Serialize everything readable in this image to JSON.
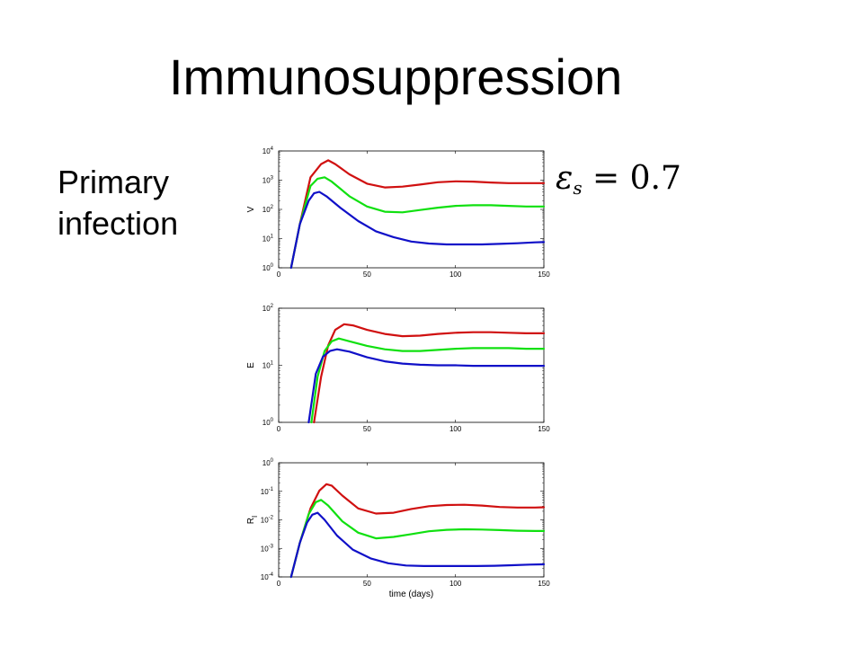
{
  "slide": {
    "title": "Immunosuppression",
    "side_label_lines": [
      "Primary",
      "infection"
    ],
    "parameter": {
      "symbol": "ε",
      "subscript": "s",
      "rest": " = 0.7"
    }
  },
  "colors": {
    "red": "#d01010",
    "green": "#10e010",
    "blue": "#1010c8",
    "axis": "#000000"
  },
  "chart_data": [
    {
      "type": "line",
      "ylabel": "V",
      "xlabel": "",
      "yscale": "log",
      "xlim": [
        0,
        150
      ],
      "ylim_exp": [
        0,
        4
      ],
      "x_ticks": [
        "0",
        "50",
        "100",
        "150"
      ],
      "y_tick_bases": [
        "10",
        "10",
        "10",
        "10",
        "10"
      ],
      "y_tick_exps": [
        "0",
        "1",
        "2",
        "3",
        "4"
      ],
      "series": [
        {
          "color": "red",
          "points": [
            [
              7,
              0
            ],
            [
              12,
              1.5
            ],
            [
              18,
              3.1
            ],
            [
              24,
              3.55
            ],
            [
              28,
              3.68
            ],
            [
              32,
              3.55
            ],
            [
              40,
              3.2
            ],
            [
              50,
              2.88
            ],
            [
              60,
              2.75
            ],
            [
              70,
              2.78
            ],
            [
              80,
              2.85
            ],
            [
              90,
              2.93
            ],
            [
              100,
              2.96
            ],
            [
              110,
              2.95
            ],
            [
              120,
              2.92
            ],
            [
              130,
              2.9
            ],
            [
              140,
              2.9
            ],
            [
              150,
              2.9
            ]
          ]
        },
        {
          "color": "green",
          "points": [
            [
              7,
              0
            ],
            [
              12,
              1.5
            ],
            [
              18,
              2.8
            ],
            [
              22,
              3.05
            ],
            [
              26,
              3.1
            ],
            [
              30,
              2.95
            ],
            [
              40,
              2.45
            ],
            [
              50,
              2.1
            ],
            [
              60,
              1.92
            ],
            [
              70,
              1.9
            ],
            [
              80,
              1.98
            ],
            [
              90,
              2.06
            ],
            [
              100,
              2.12
            ],
            [
              110,
              2.14
            ],
            [
              120,
              2.14
            ],
            [
              130,
              2.12
            ],
            [
              140,
              2.1
            ],
            [
              150,
              2.1
            ]
          ]
        },
        {
          "color": "blue",
          "points": [
            [
              7,
              0
            ],
            [
              12,
              1.5
            ],
            [
              17,
              2.3
            ],
            [
              20,
              2.55
            ],
            [
              23,
              2.6
            ],
            [
              27,
              2.45
            ],
            [
              35,
              2.05
            ],
            [
              45,
              1.6
            ],
            [
              55,
              1.25
            ],
            [
              65,
              1.05
            ],
            [
              75,
              0.9
            ],
            [
              85,
              0.83
            ],
            [
              95,
              0.8
            ],
            [
              105,
              0.8
            ],
            [
              115,
              0.8
            ],
            [
              125,
              0.82
            ],
            [
              135,
              0.84
            ],
            [
              145,
              0.87
            ],
            [
              150,
              0.88
            ]
          ]
        }
      ]
    },
    {
      "type": "line",
      "ylabel": "E",
      "xlabel": "",
      "yscale": "log",
      "xlim": [
        0,
        150
      ],
      "ylim_exp": [
        0,
        2
      ],
      "x_ticks": [
        "0",
        "50",
        "100",
        "150"
      ],
      "y_tick_bases": [
        "10",
        "10",
        "10"
      ],
      "y_tick_exps": [
        "0",
        "1",
        "2"
      ],
      "series": [
        {
          "color": "red",
          "points": [
            [
              20,
              0
            ],
            [
              24,
              0.8
            ],
            [
              28,
              1.35
            ],
            [
              32,
              1.62
            ],
            [
              37,
              1.72
            ],
            [
              42,
              1.7
            ],
            [
              50,
              1.62
            ],
            [
              60,
              1.55
            ],
            [
              70,
              1.51
            ],
            [
              80,
              1.52
            ],
            [
              90,
              1.55
            ],
            [
              100,
              1.57
            ],
            [
              110,
              1.58
            ],
            [
              120,
              1.58
            ],
            [
              130,
              1.57
            ],
            [
              140,
              1.56
            ],
            [
              150,
              1.56
            ]
          ]
        },
        {
          "color": "green",
          "points": [
            [
              18.5,
              0
            ],
            [
              22,
              0.8
            ],
            [
              26,
              1.25
            ],
            [
              30,
              1.42
            ],
            [
              34,
              1.47
            ],
            [
              40,
              1.42
            ],
            [
              50,
              1.34
            ],
            [
              60,
              1.28
            ],
            [
              70,
              1.25
            ],
            [
              80,
              1.25
            ],
            [
              90,
              1.27
            ],
            [
              100,
              1.29
            ],
            [
              110,
              1.3
            ],
            [
              120,
              1.3
            ],
            [
              130,
              1.3
            ],
            [
              140,
              1.29
            ],
            [
              150,
              1.29
            ]
          ]
        },
        {
          "color": "blue",
          "points": [
            [
              17,
              0
            ],
            [
              21,
              0.85
            ],
            [
              25,
              1.15
            ],
            [
              29,
              1.25
            ],
            [
              33,
              1.28
            ],
            [
              40,
              1.24
            ],
            [
              50,
              1.14
            ],
            [
              60,
              1.07
            ],
            [
              70,
              1.03
            ],
            [
              80,
              1.01
            ],
            [
              90,
              1.0
            ],
            [
              100,
              1.0
            ],
            [
              110,
              0.99
            ],
            [
              120,
              0.99
            ],
            [
              130,
              0.99
            ],
            [
              140,
              0.99
            ],
            [
              150,
              0.99
            ]
          ]
        }
      ]
    },
    {
      "type": "line",
      "ylabel": "R",
      "ylabel_sub": "I",
      "xlabel": "time (days)",
      "yscale": "log",
      "xlim": [
        0,
        150
      ],
      "ylim_exp": [
        -4,
        0
      ],
      "x_ticks": [
        "0",
        "50",
        "100",
        "150"
      ],
      "y_tick_bases": [
        "10",
        "10",
        "10",
        "10",
        "10"
      ],
      "y_tick_exps": [
        "-4",
        "-3",
        "-2",
        "-1",
        "0"
      ],
      "series": [
        {
          "color": "red",
          "points": [
            [
              7,
              -4
            ],
            [
              12,
              -2.8
            ],
            [
              18,
              -1.6
            ],
            [
              23,
              -0.98
            ],
            [
              27,
              -0.75
            ],
            [
              30,
              -0.8
            ],
            [
              36,
              -1.15
            ],
            [
              45,
              -1.6
            ],
            [
              55,
              -1.78
            ],
            [
              65,
              -1.75
            ],
            [
              75,
              -1.62
            ],
            [
              85,
              -1.52
            ],
            [
              95,
              -1.48
            ],
            [
              105,
              -1.47
            ],
            [
              115,
              -1.5
            ],
            [
              125,
              -1.55
            ],
            [
              135,
              -1.57
            ],
            [
              145,
              -1.57
            ],
            [
              150,
              -1.56
            ]
          ]
        },
        {
          "color": "green",
          "points": [
            [
              7,
              -4
            ],
            [
              12,
              -2.8
            ],
            [
              17,
              -1.8
            ],
            [
              21,
              -1.38
            ],
            [
              24,
              -1.3
            ],
            [
              28,
              -1.5
            ],
            [
              36,
              -2.05
            ],
            [
              45,
              -2.45
            ],
            [
              55,
              -2.65
            ],
            [
              65,
              -2.6
            ],
            [
              75,
              -2.5
            ],
            [
              85,
              -2.4
            ],
            [
              95,
              -2.35
            ],
            [
              105,
              -2.33
            ],
            [
              115,
              -2.34
            ],
            [
              125,
              -2.36
            ],
            [
              135,
              -2.38
            ],
            [
              145,
              -2.39
            ],
            [
              150,
              -2.39
            ]
          ]
        },
        {
          "color": "blue",
          "points": [
            [
              7,
              -4
            ],
            [
              12,
              -2.8
            ],
            [
              16,
              -2.1
            ],
            [
              19,
              -1.82
            ],
            [
              22,
              -1.75
            ],
            [
              26,
              -2.0
            ],
            [
              33,
              -2.55
            ],
            [
              42,
              -3.05
            ],
            [
              52,
              -3.35
            ],
            [
              62,
              -3.52
            ],
            [
              72,
              -3.6
            ],
            [
              82,
              -3.62
            ],
            [
              92,
              -3.62
            ],
            [
              102,
              -3.62
            ],
            [
              112,
              -3.62
            ],
            [
              122,
              -3.61
            ],
            [
              132,
              -3.59
            ],
            [
              142,
              -3.57
            ],
            [
              150,
              -3.56
            ]
          ]
        }
      ]
    }
  ]
}
